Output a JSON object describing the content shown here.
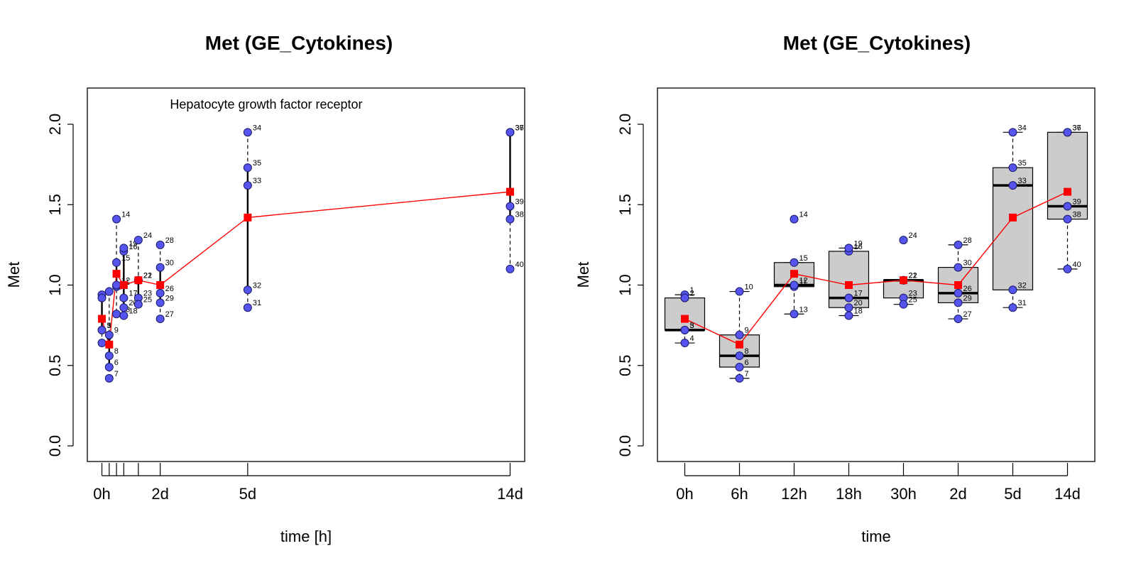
{
  "colors": {
    "point_fill": "#5555ee",
    "point_stroke": "#1a1a66",
    "mean": "#ff0000",
    "box_fill": "#cccccc"
  },
  "chart_data": [
    {
      "type": "scatter",
      "title": "Met (GE_Cytokines)",
      "annotation": "Hepatocyte growth factor receptor",
      "xlabel": "time [h]",
      "ylabel": "Met",
      "xlim": [
        -12,
        348
      ],
      "ylim": [
        -0.08,
        2.2
      ],
      "xtick_labels": [
        {
          "x": 0,
          "label": "0h"
        },
        {
          "x": 48,
          "label": "2d"
        },
        {
          "x": 120,
          "label": "5d"
        },
        {
          "x": 336,
          "label": "14d"
        }
      ],
      "xtick_marks": [
        0,
        6,
        12,
        18,
        30,
        48,
        120,
        336
      ],
      "yticks": [
        0.0,
        0.5,
        1.0,
        1.5,
        2.0
      ],
      "ytick_labels": [
        "0.0",
        "0.5",
        "1.0",
        "1.5",
        "2.0"
      ],
      "groups": [
        {
          "x": 0,
          "mean": 0.79,
          "points": [
            {
              "id": "1",
              "y": 0.94
            },
            {
              "id": "2",
              "y": 0.92
            },
            {
              "id": "3",
              "y": 0.72
            },
            {
              "id": "4",
              "y": 0.64
            },
            {
              "id": "5",
              "y": 0.72
            }
          ]
        },
        {
          "x": 6,
          "mean": 0.63,
          "points": [
            {
              "id": "6",
              "y": 0.49
            },
            {
              "id": "7",
              "y": 0.42
            },
            {
              "id": "8",
              "y": 0.56
            },
            {
              "id": "9",
              "y": 0.69
            },
            {
              "id": "10",
              "y": 0.96
            }
          ]
        },
        {
          "x": 12,
          "mean": 1.07,
          "points": [
            {
              "id": "11",
              "y": 0.99
            },
            {
              "id": "12",
              "y": 1.0
            },
            {
              "id": "13",
              "y": 0.82
            },
            {
              "id": "14",
              "y": 1.41
            },
            {
              "id": "15",
              "y": 1.14
            }
          ]
        },
        {
          "x": 18,
          "mean": 1.0,
          "points": [
            {
              "id": "16",
              "y": 1.21
            },
            {
              "id": "17",
              "y": 0.92
            },
            {
              "id": "18",
              "y": 0.81
            },
            {
              "id": "19",
              "y": 1.23
            },
            {
              "id": "20",
              "y": 0.86
            }
          ]
        },
        {
          "x": 30,
          "mean": 1.03,
          "points": [
            {
              "id": "21",
              "y": 1.03
            },
            {
              "id": "22",
              "y": 1.03
            },
            {
              "id": "23",
              "y": 0.92
            },
            {
              "id": "24",
              "y": 1.28
            },
            {
              "id": "25",
              "y": 0.88
            }
          ]
        },
        {
          "x": 48,
          "mean": 1.0,
          "points": [
            {
              "id": "26",
              "y": 0.95
            },
            {
              "id": "27",
              "y": 0.79
            },
            {
              "id": "28",
              "y": 1.25
            },
            {
              "id": "29",
              "y": 0.89
            },
            {
              "id": "30",
              "y": 1.11
            }
          ]
        },
        {
          "x": 120,
          "mean": 1.42,
          "points": [
            {
              "id": "31",
              "y": 0.86
            },
            {
              "id": "32",
              "y": 0.97
            },
            {
              "id": "33",
              "y": 1.62
            },
            {
              "id": "34",
              "y": 1.95
            },
            {
              "id": "35",
              "y": 1.73
            }
          ]
        },
        {
          "x": 336,
          "mean": 1.58,
          "points": [
            {
              "id": "36",
              "y": 1.95
            },
            {
              "id": "37",
              "y": 1.95
            },
            {
              "id": "38",
              "y": 1.41
            },
            {
              "id": "39",
              "y": 1.49
            },
            {
              "id": "40",
              "y": 1.1
            }
          ]
        }
      ]
    },
    {
      "type": "box",
      "title": "Met (GE_Cytokines)",
      "xlabel": "time",
      "ylabel": "Met",
      "ylim": [
        -0.08,
        2.2
      ],
      "yticks": [
        0.0,
        0.5,
        1.0,
        1.5,
        2.0
      ],
      "ytick_labels": [
        "0.0",
        "0.5",
        "1.0",
        "1.5",
        "2.0"
      ],
      "categories": [
        "0h",
        "6h",
        "12h",
        "18h",
        "30h",
        "2d",
        "5d",
        "14d"
      ],
      "boxes": [
        {
          "whisker_low": 0.64,
          "q1": 0.72,
          "median": 0.72,
          "q3": 0.92,
          "whisker_high": 0.94
        },
        {
          "whisker_low": 0.42,
          "q1": 0.49,
          "median": 0.56,
          "q3": 0.69,
          "whisker_high": 0.96
        },
        {
          "whisker_low": 0.82,
          "q1": 0.99,
          "median": 1.0,
          "q3": 1.14,
          "whisker_high": 1.14
        },
        {
          "whisker_low": 0.81,
          "q1": 0.86,
          "median": 0.92,
          "q3": 1.21,
          "whisker_high": 1.23
        },
        {
          "whisker_low": 0.88,
          "q1": 0.92,
          "median": 1.03,
          "q3": 1.03,
          "whisker_high": 1.03
        },
        {
          "whisker_low": 0.79,
          "q1": 0.89,
          "median": 0.95,
          "q3": 1.11,
          "whisker_high": 1.25
        },
        {
          "whisker_low": 0.86,
          "q1": 0.97,
          "median": 1.62,
          "q3": 1.73,
          "whisker_high": 1.95
        },
        {
          "whisker_low": 1.1,
          "q1": 1.41,
          "median": 1.49,
          "q3": 1.95,
          "whisker_high": 1.95
        }
      ],
      "means": [
        0.79,
        0.63,
        1.07,
        1.0,
        1.03,
        1.0,
        1.42,
        1.58
      ]
    }
  ]
}
